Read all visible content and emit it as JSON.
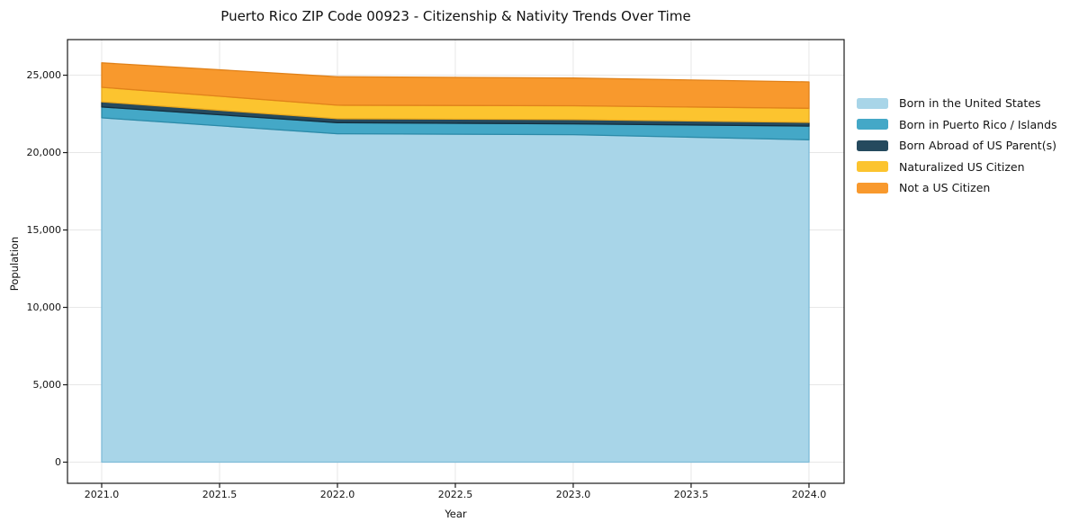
{
  "chart_data": {
    "type": "area",
    "stacked": true,
    "title": "Puerto Rico ZIP Code 00923 - Citizenship & Nativity Trends Over Time",
    "xlabel": "Year",
    "ylabel": "Population",
    "x": [
      2021,
      2022,
      2023,
      2024
    ],
    "series": [
      {
        "name": "Born in the United States",
        "color": "#a8d5e8",
        "edge_color": "#7fbcd8",
        "values": [
          22250,
          21220,
          21160,
          20830
        ]
      },
      {
        "name": "Born in Puerto Rico / Islands",
        "color": "#44a8c7",
        "edge_color": "#2b8aa8",
        "values": [
          700,
          715,
          700,
          880
        ]
      },
      {
        "name": "Born Abroad of US Parent(s)",
        "color": "#254a5e",
        "edge_color": "#142e3d",
        "values": [
          330,
          255,
          270,
          240
        ]
      },
      {
        "name": "Naturalized US Citizen",
        "color": "#fcc42f",
        "edge_color": "#e8a81e",
        "values": [
          940,
          870,
          895,
          915
        ]
      },
      {
        "name": "Not a US Citizen",
        "color": "#f8992d",
        "edge_color": "#e1821a",
        "values": [
          1580,
          1840,
          1790,
          1705
        ]
      }
    ],
    "xlim": [
      2020.855,
      2024.149
    ],
    "ylim": [
      -1366,
      27300
    ],
    "xticks": {
      "values": [
        2021,
        2021.5,
        2022,
        2022.5,
        2023,
        2023.5,
        2024
      ],
      "labels": [
        "2021.0",
        "2021.5",
        "2022.0",
        "2022.5",
        "2023.0",
        "2023.5",
        "2024.0"
      ]
    },
    "yticks": {
      "values": [
        0,
        5000,
        10000,
        15000,
        20000,
        25000
      ],
      "labels": [
        "0",
        "5,000",
        "10,000",
        "15,000",
        "20,000",
        "25,000"
      ]
    },
    "grid": true,
    "legend_position": "right-outside"
  },
  "style": {
    "background": "#ffffff",
    "grid_color": "#e7e7e7",
    "spine_color": "#1a1a1a",
    "tick_color": "#1a1a1a",
    "text_color": "#111111"
  }
}
